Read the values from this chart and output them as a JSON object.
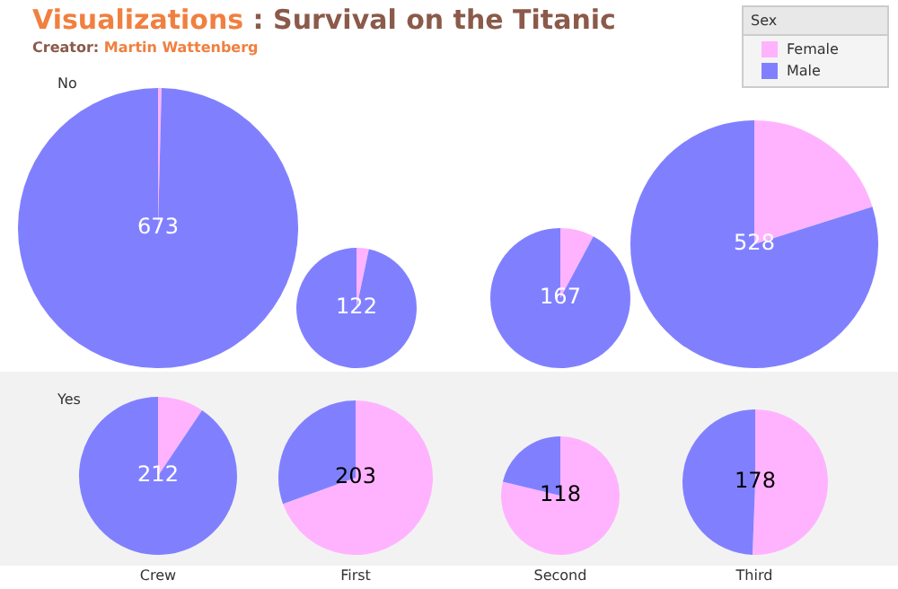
{
  "chart_data": [
    {
      "type": "pie",
      "title": "Visualizations : Survival on the Titanic",
      "subtitle": "Creator: Martin Wattenberg",
      "ylabel": "No",
      "legend": "top right",
      "legend_title": "Sex",
      "categories": [
        "Female",
        "Male"
      ],
      "values": [
        0.4,
        99.6
      ],
      "colors": [
        "#ffb3ff",
        "#8080ff"
      ],
      "totals": [
        "673"
      ]
    },
    {
      "type": "pie",
      "categories": [
        null,
        null
      ],
      "values": [
        3.3,
        96.7
      ],
      "colors": [
        "#ffb3ff",
        "#8080ff"
      ],
      "totals": [
        "122"
      ]
    },
    {
      "type": "pie",
      "categories": [
        null,
        null
      ],
      "values": [
        7.8,
        92.2
      ],
      "colors": [
        "#ffb3ff",
        "#8080ff"
      ],
      "totals": [
        "167"
      ]
    },
    {
      "type": "pie",
      "categories": [
        null,
        null
      ],
      "values": [
        20.1,
        79.9
      ],
      "colors": [
        "#ffb3ff",
        "#8080ff"
      ],
      "totals": [
        "528"
      ]
    },
    {
      "type": "pie",
      "ylabel": "Yes",
      "xlabel": "Crew",
      "categories": [
        null,
        null
      ],
      "values": [
        9.4,
        90.6
      ],
      "colors": [
        "#ffb3ff",
        "#8080ff"
      ],
      "totals": [
        "212"
      ]
    },
    {
      "type": "pie",
      "xlabel": "First",
      "categories": [
        null,
        null
      ],
      "values": [
        69.5,
        30.5
      ],
      "colors": [
        "#ffb3ff",
        "#8080ff"
      ],
      "totals": [
        "203"
      ]
    },
    {
      "type": "pie",
      "xlabel": "Second",
      "categories": [
        null,
        null
      ],
      "values": [
        78.8,
        21.2
      ],
      "colors": [
        "#ffb3ff",
        "#8080ff"
      ],
      "totals": [
        "118"
      ]
    },
    {
      "type": "pie",
      "xlabel": "Third",
      "categories": [
        null,
        null
      ],
      "values": [
        50.6,
        49.4
      ],
      "colors": [
        "#ffb3ff",
        "#8080ff"
      ],
      "totals": [
        "178"
      ]
    }
  ]
}
